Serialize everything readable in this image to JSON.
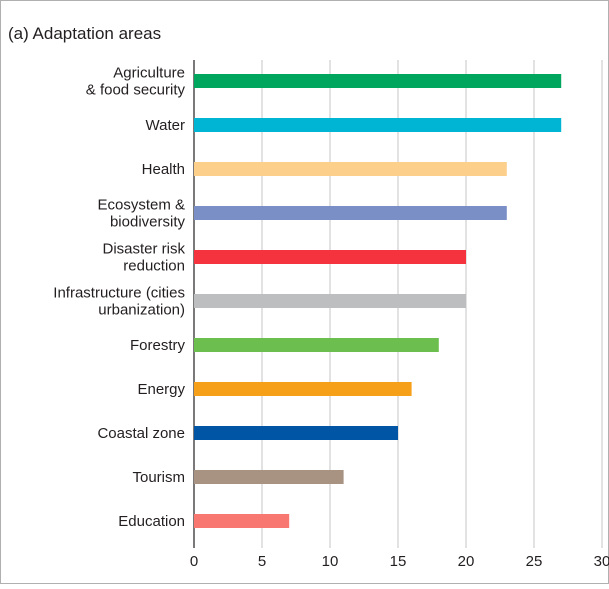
{
  "chart_data": {
    "type": "bar",
    "orientation": "horizontal",
    "title": "(a) Adaptation areas",
    "categories": [
      "Agriculture\n& food security",
      "Water",
      "Health",
      "Ecosystem &\nbiodiversity",
      "Disaster risk\nreduction",
      "Infrastructure (cities\nurbanization)",
      "Forestry",
      "Energy",
      "Coastal zone",
      "Tourism",
      "Education"
    ],
    "values": [
      27,
      27,
      23,
      23,
      20,
      20,
      18,
      16,
      15,
      11,
      7
    ],
    "colors": [
      "#00a65d",
      "#00b4d4",
      "#fcd08b",
      "#7b8fc7",
      "#f5333f",
      "#bcbec0",
      "#6cbf4f",
      "#f6a01a",
      "#0055a4",
      "#a89383",
      "#f87770"
    ],
    "xlim": [
      0,
      30
    ],
    "xticks": [
      0,
      5,
      10,
      15,
      20,
      25,
      30
    ],
    "grid": true
  }
}
